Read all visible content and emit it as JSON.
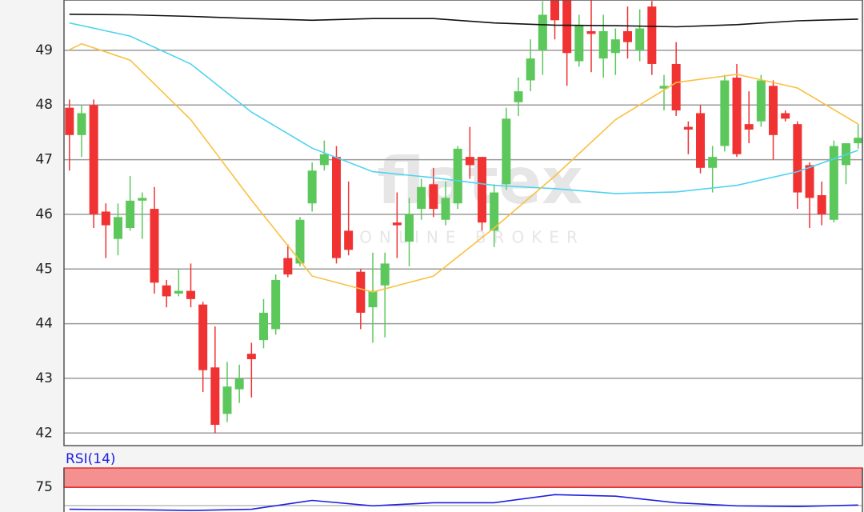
{
  "chart_data": [
    {
      "type": "candlestick",
      "watermark": "flatex",
      "watermark_sub": "ONLINE BROKER",
      "xlim": [
        -0.45,
        65.35
      ],
      "ylim": [
        41.77,
        49.92
      ],
      "yticks": [
        42,
        43,
        44,
        45,
        46,
        47,
        48,
        49
      ],
      "grid": true,
      "up_color": "#5cc85c",
      "down_color": "#f03232",
      "open": [
        47.95,
        47.45,
        48.0,
        46.05,
        45.55,
        45.75,
        46.25,
        46.1,
        44.7,
        44.55,
        44.6,
        44.35,
        43.2,
        42.35,
        42.8,
        43.45,
        43.7,
        43.9,
        45.2,
        45.1,
        46.2,
        46.9,
        47.05,
        45.7,
        44.95,
        44.3,
        44.7,
        45.85,
        45.5,
        46.1,
        46.55,
        45.9,
        46.2,
        47.05,
        47.05,
        45.7,
        46.55,
        48.05,
        48.45,
        49.0,
        50.0,
        49.95,
        48.8,
        49.35,
        48.85,
        48.95,
        49.35,
        49.0,
        49.8,
        48.3,
        48.75,
        47.6,
        47.85,
        46.85,
        47.25,
        48.5,
        47.65,
        47.7,
        48.35,
        47.85,
        47.65,
        46.9,
        46.35,
        45.9,
        46.9,
        47.3
      ],
      "high": [
        48.1,
        48.0,
        48.1,
        46.2,
        46.2,
        46.7,
        46.4,
        46.5,
        44.8,
        45.0,
        45.1,
        44.4,
        43.95,
        43.3,
        43.25,
        43.65,
        44.45,
        44.9,
        45.45,
        45.95,
        46.95,
        47.35,
        47.25,
        46.6,
        45.0,
        45.3,
        45.3,
        46.4,
        46.3,
        46.65,
        46.85,
        46.6,
        47.25,
        47.6,
        47.05,
        46.55,
        47.95,
        48.5,
        49.2,
        49.9,
        50.2,
        49.95,
        49.65,
        49.95,
        49.65,
        49.4,
        49.8,
        49.75,
        49.9,
        48.55,
        49.15,
        47.7,
        48.0,
        47.25,
        48.55,
        48.75,
        48.25,
        48.55,
        48.45,
        47.9,
        47.7,
        46.95,
        46.6,
        47.35,
        47.3,
        47.65
      ],
      "low": [
        46.8,
        47.05,
        45.75,
        45.2,
        45.25,
        45.7,
        45.55,
        44.55,
        44.3,
        44.5,
        44.3,
        42.75,
        42.0,
        42.2,
        42.55,
        42.65,
        43.55,
        43.8,
        44.85,
        45.05,
        46.05,
        46.8,
        45.1,
        45.25,
        43.9,
        43.65,
        43.75,
        45.2,
        45.05,
        45.9,
        45.95,
        45.8,
        46.1,
        46.65,
        45.7,
        45.4,
        46.45,
        47.8,
        48.25,
        48.55,
        49.2,
        48.35,
        48.7,
        48.6,
        48.5,
        48.55,
        48.85,
        48.8,
        48.55,
        47.9,
        47.8,
        47.1,
        46.75,
        46.4,
        47.15,
        47.05,
        47.3,
        47.6,
        47.0,
        47.7,
        46.1,
        45.75,
        45.8,
        45.85,
        46.55,
        47.2
      ],
      "close": [
        47.45,
        47.85,
        46.0,
        45.8,
        45.95,
        46.25,
        46.3,
        44.75,
        44.5,
        44.6,
        44.45,
        43.15,
        42.15,
        42.85,
        43.0,
        43.35,
        44.2,
        44.8,
        44.9,
        45.9,
        46.8,
        47.1,
        45.2,
        45.35,
        44.2,
        44.6,
        45.1,
        45.8,
        46.0,
        46.5,
        46.1,
        46.3,
        47.2,
        46.9,
        45.85,
        46.4,
        47.75,
        48.25,
        48.85,
        49.65,
        49.55,
        48.95,
        49.45,
        49.3,
        49.35,
        49.2,
        49.15,
        49.4,
        48.75,
        48.35,
        47.9,
        47.55,
        46.85,
        47.05,
        48.45,
        47.1,
        47.55,
        48.45,
        47.45,
        47.75,
        46.4,
        46.3,
        46.0,
        47.25,
        47.3,
        47.4
      ],
      "overlays": [
        {
          "color": "#111111",
          "x": [
            0,
            5,
            10,
            15,
            20,
            25,
            30,
            35,
            40,
            45,
            50,
            55,
            60,
            65
          ],
          "values": [
            49.66,
            49.65,
            49.62,
            49.58,
            49.55,
            49.58,
            49.58,
            49.5,
            49.46,
            49.45,
            49.43,
            49.47,
            49.54,
            49.57
          ]
        },
        {
          "color": "#4fd3f0",
          "x": [
            0,
            5,
            10,
            15,
            20,
            25,
            30,
            35,
            40,
            45,
            50,
            55,
            60,
            65
          ],
          "values": [
            49.5,
            49.26,
            48.75,
            47.87,
            47.21,
            46.78,
            46.67,
            46.53,
            46.47,
            46.38,
            46.41,
            46.53,
            46.78,
            47.17
          ]
        },
        {
          "color": "#f9c040",
          "x": [
            0,
            1,
            5,
            10,
            15,
            20,
            25,
            30,
            35,
            40,
            45,
            50,
            55,
            60,
            65
          ],
          "values": [
            49.01,
            49.12,
            48.82,
            47.73,
            46.26,
            44.87,
            44.58,
            44.87,
            45.75,
            46.7,
            47.73,
            48.41,
            48.56,
            48.31,
            47.65
          ]
        }
      ]
    },
    {
      "type": "line",
      "title": "RSI(14)",
      "xlim": [
        -0.45,
        65.35
      ],
      "ylim": [
        43,
        100
      ],
      "yticks": [
        75
      ],
      "band": [
        75,
        100
      ],
      "band_color": "#f49090",
      "band_edge": "#e03030",
      "color": "#2020e0",
      "x": [
        0,
        5,
        10,
        15,
        20,
        25,
        30,
        35,
        40,
        45,
        50,
        55,
        60,
        65
      ],
      "values": [
        46.5,
        46,
        45,
        46.5,
        58,
        51,
        55,
        55,
        65.5,
        63.5,
        55,
        51,
        50,
        52
      ]
    }
  ]
}
